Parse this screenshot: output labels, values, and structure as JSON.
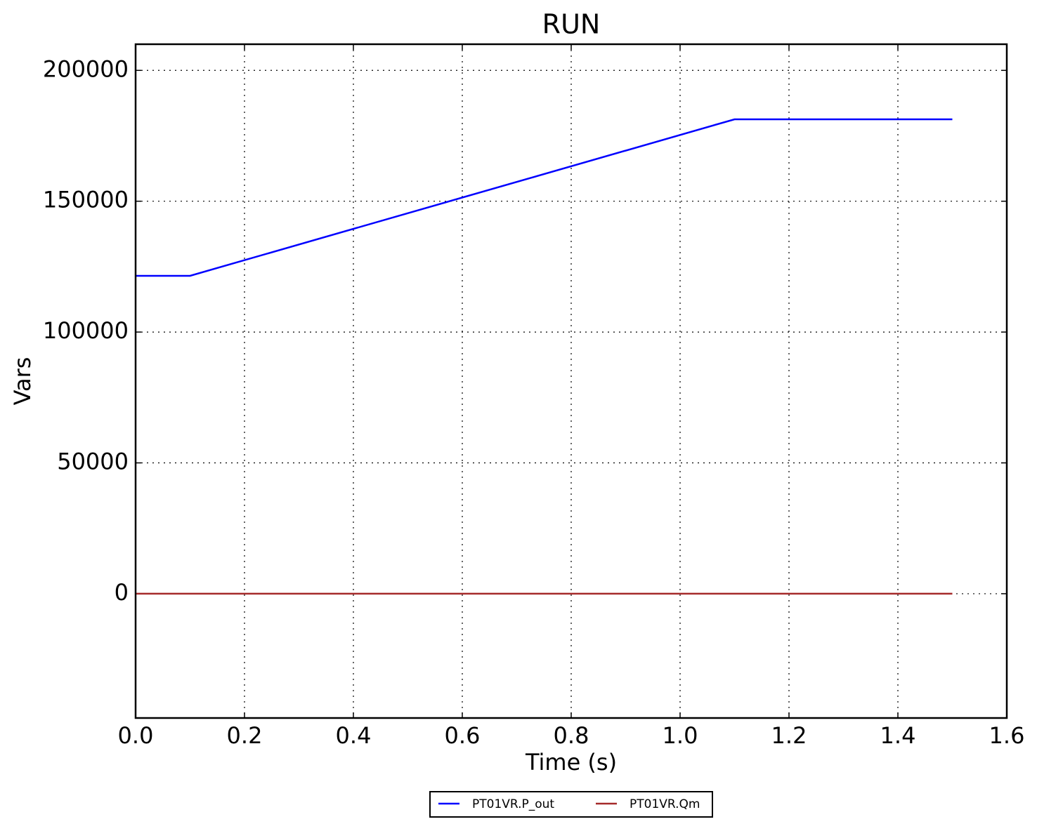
{
  "chart_data": {
    "type": "line",
    "title": "RUN",
    "x_label": "Time (s)",
    "y_label": "Vars",
    "x": [
      0,
      0.1,
      1.1,
      1.5
    ],
    "series": [
      {
        "name": "PT01VR.P_out",
        "color": "#0000ff",
        "values": [
          121500,
          121500,
          181300,
          181300
        ]
      },
      {
        "name": "PT01VR.Qm",
        "color": "#a52a2a",
        "values": [
          0,
          0,
          0,
          0
        ]
      }
    ],
    "xlim": [
      0,
      1.6
    ],
    "xticks": [
      {
        "value": 0,
        "label": "0.0"
      },
      0.2,
      0.4,
      0.6,
      0.8,
      {
        "value": 1,
        "label": "1.0"
      },
      1.2,
      1.4,
      1.6
    ],
    "ylim": [
      -47500,
      210000
    ],
    "yticks": [
      0,
      50000,
      100000,
      150000,
      200000
    ],
    "grid": true,
    "legend": "bottom"
  }
}
